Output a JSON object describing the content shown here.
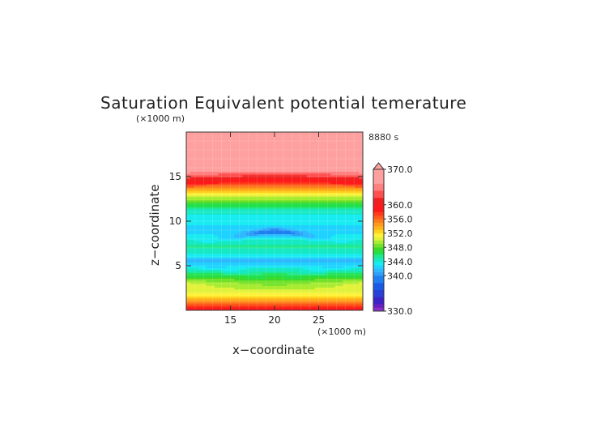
{
  "chart_data": {
    "type": "heatmap",
    "title": "Saturation Equivalent potential temerature",
    "time_label": "8880 s",
    "xlabel": "x−coordinate",
    "ylabel": "z−coordinate",
    "x_unit": "(×1000 m)",
    "y_unit": "(×1000 m)",
    "xlim": [
      10,
      30
    ],
    "ylim": [
      0,
      20
    ],
    "x_ticks": [
      15,
      20,
      25
    ],
    "y_ticks": [
      5,
      10,
      15
    ],
    "colorbar": {
      "range": [
        330,
        370
      ],
      "tick_values": [
        370,
        360,
        356,
        352,
        348,
        344,
        340,
        330
      ],
      "tick_labels": [
        "370.0",
        "360.0",
        "356.0",
        "352.0",
        "348.0",
        "344.0",
        "340.0",
        "330.0"
      ],
      "levels": [
        {
          "value": 331,
          "color": "#8b2fc9"
        },
        {
          "value": 332,
          "color": "#6a20c0"
        },
        {
          "value": 334,
          "color": "#3d22c8"
        },
        {
          "value": 336,
          "color": "#2a3fd8"
        },
        {
          "value": 338,
          "color": "#1a5ae6"
        },
        {
          "value": 340,
          "color": "#1f7ff0"
        },
        {
          "value": 341,
          "color": "#2f9ef7"
        },
        {
          "value": 342,
          "color": "#30b8ff"
        },
        {
          "value": 343,
          "color": "#1fd2ff"
        },
        {
          "value": 344,
          "color": "#19ecf0"
        },
        {
          "value": 345,
          "color": "#17e8c4"
        },
        {
          "value": 346,
          "color": "#1ee890"
        },
        {
          "value": 347,
          "color": "#22e04a"
        },
        {
          "value": 348,
          "color": "#3ad92a"
        },
        {
          "value": 349,
          "color": "#72e22a"
        },
        {
          "value": 350,
          "color": "#a8ec32"
        },
        {
          "value": 351,
          "color": "#e2f23a"
        },
        {
          "value": 352,
          "color": "#fff23a"
        },
        {
          "value": 353,
          "color": "#ffd21e"
        },
        {
          "value": 354,
          "color": "#ffb41a"
        },
        {
          "value": 355,
          "color": "#ff9a1a"
        },
        {
          "value": 356,
          "color": "#ff7a1a"
        },
        {
          "value": 357,
          "color": "#ff5a1a"
        },
        {
          "value": 358,
          "color": "#ff3a1a"
        },
        {
          "value": 360,
          "color": "#ff1a1a"
        },
        {
          "value": 362,
          "color": "#f02020"
        },
        {
          "value": 364,
          "color": "#ff5050"
        },
        {
          "value": 366,
          "color": "#ff8080"
        },
        {
          "value": 370,
          "color": "#ffa0a0"
        }
      ]
    },
    "profile": [
      {
        "z": 0.0,
        "theta": 360.0
      },
      {
        "z": 0.6,
        "theta": 357.0
      },
      {
        "z": 1.2,
        "theta": 354.0
      },
      {
        "z": 1.8,
        "theta": 351.5
      },
      {
        "z": 2.6,
        "theta": 349.5
      },
      {
        "z": 3.4,
        "theta": 348.0
      },
      {
        "z": 4.2,
        "theta": 346.0
      },
      {
        "z": 5.0,
        "theta": 343.0
      },
      {
        "z": 5.6,
        "theta": 341.5
      },
      {
        "z": 6.4,
        "theta": 344.0
      },
      {
        "z": 7.2,
        "theta": 345.5
      },
      {
        "z": 8.0,
        "theta": 344.0
      },
      {
        "z": 8.8,
        "theta": 342.5
      },
      {
        "z": 9.6,
        "theta": 343.0
      },
      {
        "z": 10.4,
        "theta": 343.5
      },
      {
        "z": 11.2,
        "theta": 344.5
      },
      {
        "z": 12.0,
        "theta": 347.0
      },
      {
        "z": 12.6,
        "theta": 349.5
      },
      {
        "z": 13.2,
        "theta": 352.0
      },
      {
        "z": 13.8,
        "theta": 355.0
      },
      {
        "z": 14.4,
        "theta": 358.0
      },
      {
        "z": 15.0,
        "theta": 361.0
      },
      {
        "z": 15.6,
        "theta": 366.0
      },
      {
        "z": 16.4,
        "theta": 369.0
      },
      {
        "z": 20.0,
        "theta": 370.0
      }
    ]
  }
}
